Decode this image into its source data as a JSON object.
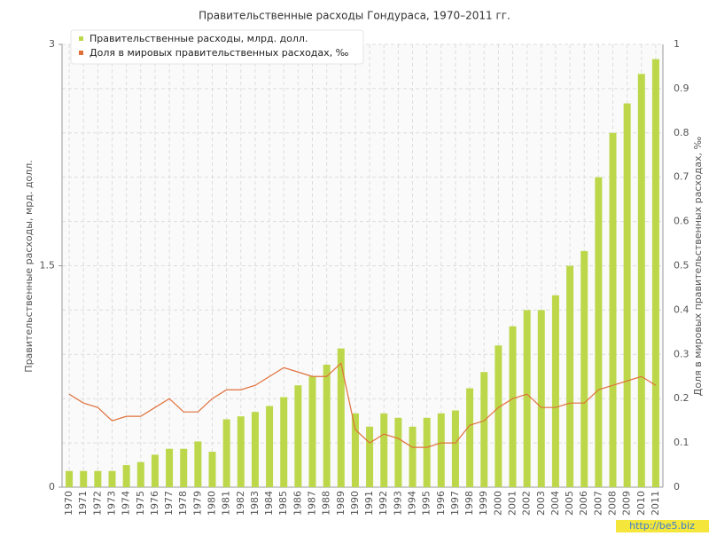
{
  "chart_data": {
    "type": "bar_line",
    "title": "Правительственные расходы Гондураса, 1970–2011 гг.",
    "y_label": "Правительственные расходы, мрд. долл.",
    "y2_label": "Доля в мировых правительственных расходах, ‰",
    "watermark": "http://be5.biz",
    "categories": [
      "1970",
      "1971",
      "1972",
      "1973",
      "1974",
      "1975",
      "1976",
      "1977",
      "1978",
      "1979",
      "1980",
      "1981",
      "1982",
      "1983",
      "1984",
      "1985",
      "1986",
      "1987",
      "1988",
      "1989",
      "1990",
      "1991",
      "1992",
      "1993",
      "1994",
      "1995",
      "1996",
      "1997",
      "1998",
      "1999",
      "2000",
      "2001",
      "2002",
      "2003",
      "2004",
      "2005",
      "2006",
      "2007",
      "2008",
      "2009",
      "2010",
      "2011"
    ],
    "series": [
      {
        "name": "Правительственные расходы, млрд. долл.",
        "color": "#bcd84a",
        "kind": "bar",
        "values": [
          0.11,
          0.11,
          0.11,
          0.11,
          0.15,
          0.17,
          0.22,
          0.26,
          0.26,
          0.31,
          0.24,
          0.46,
          0.48,
          0.51,
          0.55,
          0.61,
          0.69,
          0.75,
          0.83,
          0.94,
          0.5,
          0.41,
          0.5,
          0.47,
          0.41,
          0.47,
          0.5,
          0.52,
          0.67,
          0.78,
          0.96,
          1.09,
          1.2,
          1.2,
          1.3,
          1.5,
          1.6,
          2.1,
          2.4,
          2.6,
          2.8,
          2.9
        ]
      },
      {
        "name": "Доля в мировых правительственных расходах, ‰",
        "color": "#e0703a",
        "kind": "line",
        "axis": "y2",
        "values": [
          0.21,
          0.19,
          0.18,
          0.15,
          0.16,
          0.16,
          0.18,
          0.2,
          0.17,
          0.17,
          0.2,
          0.22,
          0.22,
          0.23,
          0.25,
          0.27,
          0.26,
          0.25,
          0.25,
          0.28,
          0.13,
          0.1,
          0.12,
          0.11,
          0.09,
          0.09,
          0.1,
          0.1,
          0.14,
          0.15,
          0.18,
          0.2,
          0.21,
          0.18,
          0.18,
          0.19,
          0.19,
          0.22,
          0.23,
          0.24,
          0.25,
          0.23
        ]
      }
    ],
    "ylim": [
      0,
      3
    ],
    "yticks": [
      0,
      1.5,
      3
    ],
    "y2lim": [
      0,
      1
    ],
    "y2ticks": [
      0,
      0.1,
      0.2,
      0.3,
      0.4,
      0.5,
      0.6,
      0.7,
      0.8,
      0.9,
      1
    ],
    "grid": true
  }
}
